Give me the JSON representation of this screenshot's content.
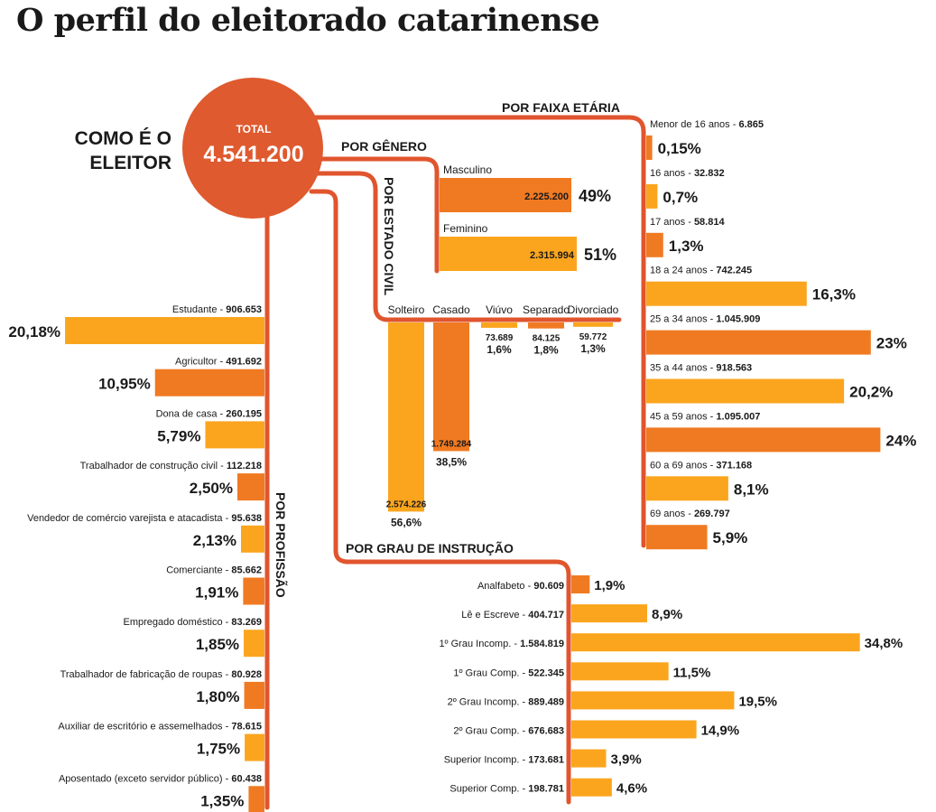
{
  "page": {
    "title": "O perfil do eleitorado catarinense"
  },
  "colors": {
    "dark": "#f07a22",
    "light": "#fba51e",
    "line": "#e0552e",
    "circle": "#df5a2f",
    "text": "#1a1a1a"
  },
  "header": {
    "como_line1": "COMO É O",
    "como_line2": "ELEITOR"
  },
  "total": {
    "label": "TOTAL",
    "value": "4.541.200"
  },
  "chart_data": [
    {
      "type": "bar",
      "title": "POR FAIXA ETÁRIA",
      "categories": [
        "Menor de 16 anos",
        "16 anos",
        "17 anos",
        "18 a 24 anos",
        "25 a 34 anos",
        "35 a 44 anos",
        "45 a 59 anos",
        "60 a 69 anos",
        "69 anos"
      ],
      "counts": [
        "6.865",
        "32.832",
        "58.814",
        "742.245",
        "1.045.909",
        "918.563",
        "1.095.007",
        "371.168",
        "269.797"
      ],
      "values": [
        0.15,
        0.7,
        1.3,
        16.3,
        23,
        20.2,
        24,
        8.1,
        5.9
      ],
      "value_labels": [
        "0,15%",
        "0,7%",
        "1,3%",
        "16,3%",
        "23%",
        "20,2%",
        "24%",
        "8,1%",
        "5,9%"
      ],
      "unit": "%"
    },
    {
      "type": "bar",
      "title": "POR GÊNERO",
      "categories": [
        "Masculino",
        "Feminino"
      ],
      "counts": [
        "2.225.200",
        "2.315.994"
      ],
      "values": [
        49,
        51
      ],
      "value_labels": [
        "49%",
        "51%"
      ],
      "unit": "%"
    },
    {
      "type": "bar",
      "title": "POR ESTADO CIVIL",
      "categories": [
        "Solteiro",
        "Casado",
        "Viúvo",
        "Separado",
        "Divorciado"
      ],
      "counts": [
        "2.574.226",
        "1.749.284",
        "73.689",
        "84.125",
        "59.772"
      ],
      "values": [
        56.6,
        38.5,
        1.6,
        1.8,
        1.3
      ],
      "value_labels": [
        "56,6%",
        "38,5%",
        "1,6%",
        "1,8%",
        "1,3%"
      ],
      "unit": "%"
    },
    {
      "type": "bar",
      "title": "POR GRAU DE INSTRUÇÃO",
      "categories": [
        "Analfabeto",
        "Lê e Escreve",
        "1º Grau Incomp.",
        "1º Grau Comp.",
        "2º Grau Incomp.",
        "2º Grau Comp.",
        "Superior Incomp.",
        "Superior Comp."
      ],
      "counts": [
        "90.609",
        "404.717",
        "1.584.819",
        "522.345",
        "889.489",
        "676.683",
        "173.681",
        "198.781"
      ],
      "values": [
        1.9,
        8.9,
        34.8,
        11.5,
        19.5,
        14.9,
        3.9,
        4.6
      ],
      "value_labels": [
        "1,9%",
        "8,9%",
        "34,8%",
        "11,5%",
        "19,5%",
        "14,9%",
        "3,9%",
        "4,6%"
      ],
      "unit": "%"
    },
    {
      "type": "bar",
      "title": "POR PROFISSÃO",
      "categories": [
        "Estudante",
        "Agricultor",
        "Dona de casa",
        "Trabalhador de construção civil",
        "Vendedor de comércio varejista e atacadista",
        "Comerciante",
        "Empregado doméstico",
        "Trabalhador de fabricação de roupas",
        "Auxiliar de escritório e assemelhados",
        "Aposentado (exceto servidor público)"
      ],
      "counts": [
        "906.653",
        "491.692",
        "260.195",
        "112.218",
        "95.638",
        "85.662",
        "83.269",
        "80.928",
        "78.615",
        "60.438"
      ],
      "values": [
        20.18,
        10.95,
        5.79,
        2.5,
        2.13,
        1.91,
        1.85,
        1.8,
        1.75,
        1.35
      ],
      "value_labels": [
        "20,18%",
        "10,95%",
        "5,79%",
        "2,50%",
        "2,13%",
        "1,91%",
        "1,85%",
        "1,80%",
        "1,75%",
        "1,35%"
      ],
      "unit": "%"
    }
  ]
}
